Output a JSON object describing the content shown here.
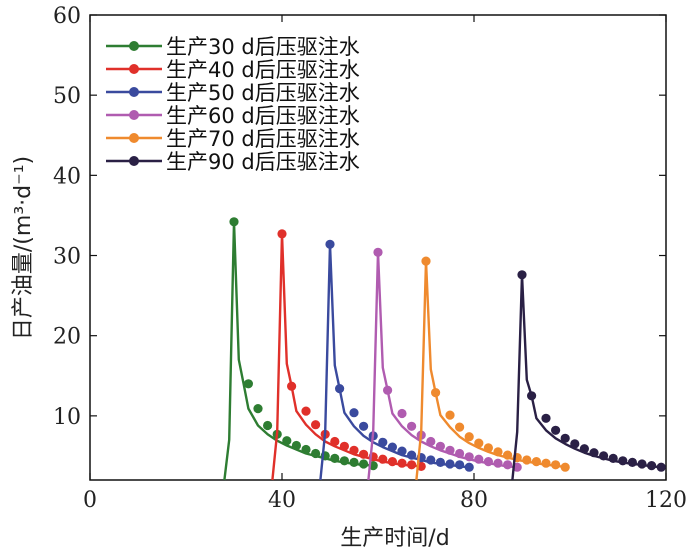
{
  "chart_data": {
    "type": "line",
    "xlabel": "生产时间/d",
    "ylabel": "日产油量/(m³·d⁻¹)",
    "xlim": [
      0,
      120
    ],
    "ylim": [
      2,
      60
    ],
    "xticks": [
      0,
      40,
      80,
      120
    ],
    "yticks": [
      10,
      20,
      30,
      40,
      50,
      60
    ],
    "grid": false,
    "legend_position": "top-left",
    "series": [
      {
        "name": "生产30 d后压驱注水",
        "color": "#2e7d32",
        "line_x": [
          28,
          29,
          30,
          31,
          32,
          33,
          35,
          37,
          39,
          41,
          43,
          45,
          47,
          49,
          51,
          53,
          55,
          57,
          59
        ],
        "line_y": [
          2,
          7,
          34.2,
          17,
          14,
          10.9,
          8.8,
          7.7,
          6.9,
          6.3,
          5.8,
          5.3,
          5.0,
          4.7,
          4.4,
          4.2,
          4.0,
          3.9,
          3.8
        ],
        "marker_x": [
          30,
          33,
          35,
          37,
          39,
          41,
          43,
          45,
          47,
          49,
          51,
          53,
          55,
          57,
          59
        ],
        "marker_y": [
          34.2,
          14,
          10.9,
          8.8,
          7.7,
          6.9,
          6.3,
          5.8,
          5.3,
          5.0,
          4.7,
          4.4,
          4.2,
          4.0,
          3.8
        ]
      },
      {
        "name": "生产40 d后压驱注水",
        "color": "#e0302a",
        "line_x": [
          38,
          39,
          40,
          41,
          42,
          43,
          45,
          47,
          49,
          51,
          53,
          55,
          57,
          59,
          61,
          63,
          65,
          67,
          69
        ],
        "line_y": [
          2,
          8,
          32.7,
          16.5,
          13.7,
          10.6,
          8.9,
          7.7,
          6.8,
          6.2,
          5.7,
          5.2,
          4.9,
          4.6,
          4.3,
          4.1,
          3.9,
          3.8,
          3.7
        ],
        "marker_x": [
          40,
          42,
          45,
          47,
          49,
          51,
          53,
          55,
          57,
          59,
          61,
          63,
          65,
          67,
          69
        ],
        "marker_y": [
          32.7,
          13.7,
          10.6,
          8.9,
          7.7,
          6.8,
          6.2,
          5.7,
          5.2,
          4.9,
          4.6,
          4.3,
          4.1,
          3.9,
          3.7
        ]
      },
      {
        "name": "生产50 d后压驱注水",
        "color": "#3a4a9e",
        "line_x": [
          48,
          49,
          50,
          51,
          52,
          53,
          55,
          57,
          59,
          61,
          63,
          65,
          67,
          69,
          71,
          73,
          75,
          77,
          79
        ],
        "line_y": [
          2,
          8,
          31.4,
          16.3,
          13.4,
          10.4,
          8.7,
          7.5,
          6.7,
          6.1,
          5.6,
          5.1,
          4.8,
          4.5,
          4.2,
          4.0,
          3.9,
          3.7,
          3.6
        ],
        "marker_x": [
          50,
          52,
          55,
          57,
          59,
          61,
          63,
          65,
          67,
          69,
          71,
          73,
          75,
          77,
          79
        ],
        "marker_y": [
          31.4,
          13.4,
          10.4,
          8.7,
          7.5,
          6.7,
          6.1,
          5.6,
          5.1,
          4.8,
          4.5,
          4.2,
          4.0,
          3.9,
          3.6
        ]
      },
      {
        "name": "生产60 d后压驱注水",
        "color": "#b05cb0",
        "line_x": [
          58,
          59,
          60,
          61,
          62,
          63,
          65,
          67,
          69,
          71,
          73,
          75,
          77,
          79,
          81,
          83,
          85,
          87,
          89
        ],
        "line_y": [
          2,
          8,
          30.4,
          16,
          13.2,
          10.3,
          8.7,
          7.6,
          6.8,
          6.2,
          5.7,
          5.3,
          4.9,
          4.6,
          4.3,
          4.1,
          3.9,
          3.7,
          3.6
        ],
        "marker_x": [
          60,
          62,
          65,
          67,
          69,
          71,
          73,
          75,
          77,
          79,
          81,
          83,
          85,
          87,
          89
        ],
        "marker_y": [
          30.4,
          13.2,
          10.3,
          8.7,
          7.6,
          6.8,
          6.2,
          5.7,
          5.3,
          4.9,
          4.6,
          4.3,
          4.1,
          3.9,
          3.6
        ]
      },
      {
        "name": "生产70 d后压驱注水",
        "color": "#ef8a2e",
        "line_x": [
          68,
          69,
          70,
          71,
          72,
          73,
          75,
          77,
          79,
          81,
          83,
          85,
          87,
          89,
          91,
          93,
          95,
          97,
          99
        ],
        "line_y": [
          2,
          8,
          29.3,
          15.8,
          12.9,
          10.1,
          8.6,
          7.4,
          6.6,
          6.0,
          5.5,
          5.1,
          4.8,
          4.5,
          4.3,
          4.1,
          3.9,
          3.8,
          3.6
        ],
        "marker_x": [
          70,
          72,
          75,
          77,
          79,
          81,
          83,
          85,
          87,
          89,
          91,
          93,
          95,
          97,
          99
        ],
        "marker_y": [
          29.3,
          12.9,
          10.1,
          8.6,
          7.4,
          6.6,
          6.0,
          5.5,
          5.1,
          4.8,
          4.5,
          4.3,
          4.1,
          3.9,
          3.6
        ]
      },
      {
        "name": "生产90 d后压驱注水",
        "color": "#2a2045",
        "line_x": [
          88,
          89,
          90,
          91,
          92,
          93,
          95,
          97,
          99,
          101,
          103,
          105,
          107,
          109,
          111,
          113,
          115,
          117,
          119
        ],
        "line_y": [
          2,
          8,
          27.6,
          14.5,
          12.5,
          9.7,
          8.2,
          7.2,
          6.5,
          5.9,
          5.4,
          5.0,
          4.7,
          4.4,
          4.2,
          4.0,
          3.9,
          3.7,
          3.6
        ],
        "marker_x": [
          90,
          92,
          95,
          97,
          99,
          101,
          103,
          105,
          107,
          109,
          111,
          113,
          115,
          117,
          119
        ],
        "marker_y": [
          27.6,
          12.5,
          9.7,
          8.2,
          7.2,
          6.5,
          5.9,
          5.4,
          5.0,
          4.7,
          4.4,
          4.2,
          4.0,
          3.8,
          3.6
        ]
      }
    ]
  }
}
